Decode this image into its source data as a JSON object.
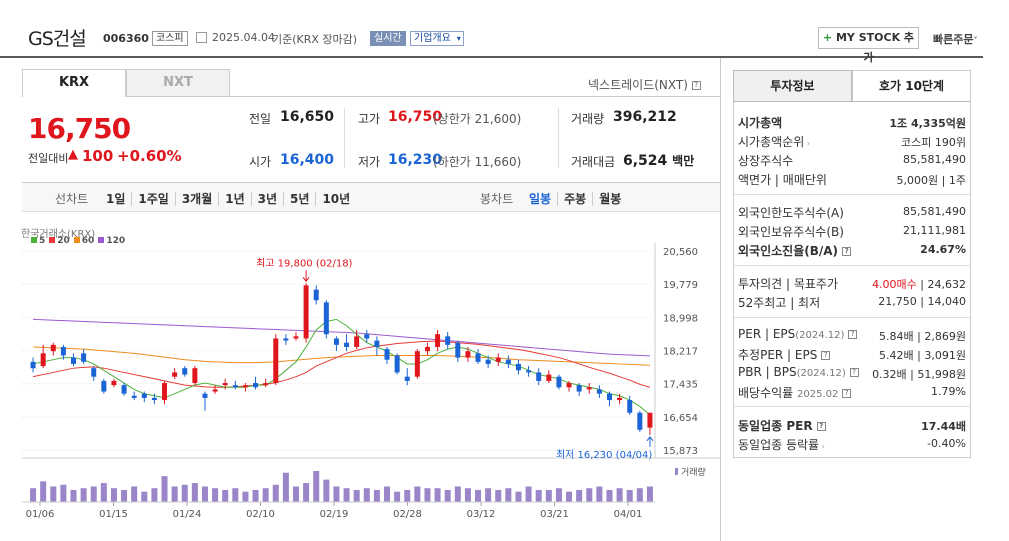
{
  "header": {
    "company": "GS건설",
    "code": "006360",
    "market_badge": "코스피",
    "date_text": "2025.04.04",
    "basis_text": "기준(KRX 장마감)",
    "realtime_badge": "실시간",
    "overview_button": "기업개요",
    "mystock_button": "MY STOCK 추가",
    "quick_order": "빠른주문"
  },
  "tabs": {
    "krx": "KRX",
    "nxt": "NXT",
    "nxt_link": "넥스트레이드(NXT)"
  },
  "price": {
    "current": "16,750",
    "change_label": "전일대비",
    "change_value": "100",
    "change_pct": "+0.60%"
  },
  "quote": {
    "prev_label": "전일",
    "prev_value": "16,650",
    "high_label": "고가",
    "high_value": "16,750",
    "high_limit": "(상한가 21,600)",
    "volume_label": "거래량",
    "volume_value": "396,212",
    "open_label": "시가",
    "open_value": "16,400",
    "low_label": "저가",
    "low_value": "16,230",
    "low_limit": "(하한가 11,660)",
    "amount_label": "거래대금",
    "amount_value": "6,524",
    "amount_unit": "백만"
  },
  "chart_toolbar": {
    "line_chart": "선차트",
    "periods": [
      "1일",
      "1주일",
      "3개월",
      "1년",
      "3년",
      "5년",
      "10년"
    ],
    "candle_chart": "봉차트",
    "candle_periods": [
      "일봉",
      "주봉",
      "월봉"
    ]
  },
  "chart_data": {
    "type": "candlestick",
    "source": "한국거래소(KRX)",
    "ma_legend": [
      {
        "name": "5",
        "color": "#4caf3a"
      },
      {
        "name": "20",
        "color": "#e53935"
      },
      {
        "name": "60",
        "color": "#f08c1e"
      },
      {
        "name": "120",
        "color": "#9b59d0"
      }
    ],
    "y_ticks": [
      "20,560",
      "19,779",
      "18,998",
      "18,217",
      "17,435",
      "16,654",
      "15,873"
    ],
    "ylim": [
      15873,
      20560
    ],
    "x_ticks": [
      "01/06",
      "01/15",
      "01/24",
      "02/10",
      "02/19",
      "02/28",
      "03/12",
      "03/21",
      "04/01"
    ],
    "annotations": {
      "high": "최고 19,800 (02/18)",
      "low": "최저 16,230 (04/04)"
    },
    "volume_label": "거래량",
    "candles": [
      {
        "o": 17950,
        "c": 17800,
        "h": 18050,
        "l": 17700
      },
      {
        "o": 17850,
        "c": 18150,
        "h": 18350,
        "l": 17800
      },
      {
        "o": 18200,
        "c": 18350,
        "h": 18400,
        "l": 18100
      },
      {
        "o": 18300,
        "c": 18100,
        "h": 18350,
        "l": 18000
      },
      {
        "o": 18050,
        "c": 17900,
        "h": 18150,
        "l": 17850
      },
      {
        "o": 18150,
        "c": 17950,
        "h": 18250,
        "l": 17900
      },
      {
        "o": 17800,
        "c": 17600,
        "h": 17850,
        "l": 17500
      },
      {
        "o": 17500,
        "c": 17250,
        "h": 17550,
        "l": 17200
      },
      {
        "o": 17400,
        "c": 17500,
        "h": 17550,
        "l": 17350
      },
      {
        "o": 17400,
        "c": 17200,
        "h": 17450,
        "l": 17150
      },
      {
        "o": 17150,
        "c": 17100,
        "h": 17250,
        "l": 17050
      },
      {
        "o": 17200,
        "c": 17100,
        "h": 17250,
        "l": 17000
      },
      {
        "o": 17100,
        "c": 17050,
        "h": 17200,
        "l": 16950
      },
      {
        "o": 17050,
        "c": 17450,
        "h": 17500,
        "l": 16950
      },
      {
        "o": 17600,
        "c": 17700,
        "h": 17800,
        "l": 17550
      },
      {
        "o": 17800,
        "c": 17650,
        "h": 17850,
        "l": 17600
      },
      {
        "o": 17450,
        "c": 17800,
        "h": 17850,
        "l": 17400
      },
      {
        "o": 17200,
        "c": 17100,
        "h": 17250,
        "l": 16800
      },
      {
        "o": 17250,
        "c": 17300,
        "h": 17400,
        "l": 17200
      },
      {
        "o": 17400,
        "c": 17450,
        "h": 17550,
        "l": 17300
      },
      {
        "o": 17400,
        "c": 17350,
        "h": 17500,
        "l": 17300
      },
      {
        "o": 17350,
        "c": 17400,
        "h": 17450,
        "l": 17250
      },
      {
        "o": 17450,
        "c": 17350,
        "h": 17600,
        "l": 17300
      },
      {
        "o": 17400,
        "c": 17450,
        "h": 17550,
        "l": 17350
      },
      {
        "o": 17450,
        "c": 18500,
        "h": 18600,
        "l": 17400
      },
      {
        "o": 18500,
        "c": 18450,
        "h": 18600,
        "l": 18350
      },
      {
        "o": 18500,
        "c": 18550,
        "h": 18650,
        "l": 18450
      },
      {
        "o": 18500,
        "c": 19750,
        "h": 19800,
        "l": 18400
      },
      {
        "o": 19650,
        "c": 19400,
        "h": 19750,
        "l": 19300
      },
      {
        "o": 19350,
        "c": 18600,
        "h": 19400,
        "l": 18500
      },
      {
        "o": 18500,
        "c": 18350,
        "h": 18550,
        "l": 18200
      },
      {
        "o": 18400,
        "c": 18300,
        "h": 18600,
        "l": 18200
      },
      {
        "o": 18300,
        "c": 18550,
        "h": 18700,
        "l": 18250
      },
      {
        "o": 18600,
        "c": 18500,
        "h": 18700,
        "l": 18400
      },
      {
        "o": 18450,
        "c": 18300,
        "h": 18550,
        "l": 18100
      },
      {
        "o": 18250,
        "c": 18000,
        "h": 18300,
        "l": 17900
      },
      {
        "o": 18100,
        "c": 17700,
        "h": 18150,
        "l": 17650
      },
      {
        "o": 17600,
        "c": 17500,
        "h": 17800,
        "l": 17400
      },
      {
        "o": 17600,
        "c": 18200,
        "h": 18250,
        "l": 17550
      },
      {
        "o": 18200,
        "c": 18300,
        "h": 18400,
        "l": 18100
      },
      {
        "o": 18300,
        "c": 18600,
        "h": 18700,
        "l": 18200
      },
      {
        "o": 18550,
        "c": 18350,
        "h": 18650,
        "l": 18250
      },
      {
        "o": 18400,
        "c": 18050,
        "h": 18450,
        "l": 17950
      },
      {
        "o": 18050,
        "c": 18200,
        "h": 18300,
        "l": 17950
      },
      {
        "o": 18150,
        "c": 17950,
        "h": 18250,
        "l": 17900
      },
      {
        "o": 18000,
        "c": 17900,
        "h": 18100,
        "l": 17800
      },
      {
        "o": 17950,
        "c": 18050,
        "h": 18150,
        "l": 17850
      },
      {
        "o": 18000,
        "c": 17900,
        "h": 18100,
        "l": 17800
      },
      {
        "o": 17900,
        "c": 17750,
        "h": 18000,
        "l": 17650
      },
      {
        "o": 17750,
        "c": 17700,
        "h": 17850,
        "l": 17600
      },
      {
        "o": 17700,
        "c": 17500,
        "h": 17800,
        "l": 17400
      },
      {
        "o": 17500,
        "c": 17650,
        "h": 17750,
        "l": 17450
      },
      {
        "o": 17600,
        "c": 17350,
        "h": 17650,
        "l": 17300
      },
      {
        "o": 17350,
        "c": 17450,
        "h": 17500,
        "l": 17250
      },
      {
        "o": 17400,
        "c": 17250,
        "h": 17450,
        "l": 17150
      },
      {
        "o": 17300,
        "c": 17350,
        "h": 17450,
        "l": 17200
      },
      {
        "o": 17300,
        "c": 17200,
        "h": 17400,
        "l": 17100
      },
      {
        "o": 17200,
        "c": 17050,
        "h": 17250,
        "l": 16900
      },
      {
        "o": 17050,
        "c": 17100,
        "h": 17200,
        "l": 16950
      },
      {
        "o": 17050,
        "c": 16750,
        "h": 17150,
        "l": 16700
      },
      {
        "o": 16750,
        "c": 16350,
        "h": 16800,
        "l": 16300
      },
      {
        "o": 16400,
        "c": 16750,
        "h": 16750,
        "l": 16230
      }
    ],
    "ma5": [
      17900,
      17950,
      18000,
      18050,
      18050,
      18000,
      17900,
      17750,
      17600,
      17450,
      17300,
      17200,
      17150,
      17100,
      17200,
      17300,
      17400,
      17450,
      17400,
      17350,
      17350,
      17350,
      17400,
      17400,
      17550,
      17750,
      17950,
      18300,
      18700,
      18900,
      18950,
      18800,
      18600,
      18400,
      18300,
      18200,
      18050,
      17900,
      17900,
      18000,
      18150,
      18250,
      18300,
      18250,
      18150,
      18050,
      17950,
      17900,
      17850,
      17750,
      17650,
      17600,
      17550,
      17450,
      17400,
      17350,
      17300,
      17200,
      17150,
      17050,
      16900,
      16700
    ],
    "ma20": [
      17600,
      17650,
      17700,
      17750,
      17800,
      17820,
      17830,
      17800,
      17750,
      17700,
      17650,
      17600,
      17550,
      17500,
      17450,
      17400,
      17380,
      17360,
      17350,
      17350,
      17360,
      17380,
      17400,
      17420,
      17460,
      17520,
      17600,
      17700,
      17850,
      17950,
      18050,
      18150,
      18220,
      18280,
      18320,
      18350,
      18380,
      18400,
      18420,
      18430,
      18440,
      18420,
      18400,
      18380,
      18360,
      18330,
      18300,
      18270,
      18240,
      18200,
      18150,
      18100,
      18050,
      17980,
      17900,
      17820,
      17750,
      17680,
      17600,
      17520,
      17420,
      17350
    ],
    "ma60": [
      18300,
      18290,
      18280,
      18270,
      18260,
      18250,
      18230,
      18210,
      18190,
      18170,
      18150,
      18120,
      18090,
      18060,
      18030,
      18000,
      17980,
      17960,
      17950,
      17940,
      17930,
      17930,
      17930,
      17940,
      17950,
      17970,
      17990,
      18010,
      18030,
      18050,
      18060,
      18070,
      18080,
      18090,
      18100,
      18100,
      18100,
      18100,
      18100,
      18100,
      18100,
      18090,
      18080,
      18070,
      18060,
      18050,
      18040,
      18020,
      18000,
      17990,
      17980,
      17970,
      17960,
      17950,
      17940,
      17930,
      17920,
      17910,
      17900,
      17890,
      17880,
      17870
    ],
    "ma120": [
      18950,
      18940,
      18930,
      18920,
      18910,
      18900,
      18890,
      18880,
      18870,
      18860,
      18850,
      18840,
      18830,
      18820,
      18810,
      18800,
      18790,
      18780,
      18770,
      18760,
      18750,
      18740,
      18730,
      18720,
      18710,
      18700,
      18690,
      18680,
      18670,
      18660,
      18650,
      18640,
      18630,
      18610,
      18590,
      18570,
      18550,
      18530,
      18510,
      18490,
      18470,
      18450,
      18430,
      18410,
      18390,
      18370,
      18350,
      18330,
      18310,
      18290,
      18270,
      18250,
      18230,
      18210,
      18190,
      18170,
      18150,
      18130,
      18120,
      18110,
      18100,
      18090
    ],
    "volume": [
      40,
      60,
      45,
      50,
      35,
      40,
      45,
      55,
      40,
      35,
      45,
      30,
      40,
      75,
      45,
      50,
      55,
      45,
      40,
      35,
      40,
      30,
      35,
      40,
      50,
      85,
      45,
      55,
      90,
      65,
      45,
      40,
      35,
      40,
      35,
      45,
      30,
      35,
      45,
      40,
      40,
      35,
      45,
      40,
      35,
      40,
      35,
      40,
      30,
      45,
      35,
      35,
      40,
      30,
      35,
      40,
      45,
      35,
      40,
      35,
      40,
      45
    ]
  },
  "right_panel": {
    "tab_invest": "투자정보",
    "tab_quote": "호가 10단계",
    "market_cap_label": "시가총액",
    "market_cap_value": "1조 4,335억원",
    "cap_rank_label": "시가총액순위",
    "cap_rank_value": "코스피 190위",
    "shares_label": "상장주식수",
    "shares_value": "85,581,490",
    "par_label": "액면가 | 매매단위",
    "par_value": "5,000원",
    "par_unit": "1주",
    "foreign_limit_label": "외국인한도주식수(A)",
    "foreign_limit_value": "85,581,490",
    "foreign_hold_label": "외국인보유주식수(B)",
    "foreign_hold_value": "21,111,981",
    "foreign_ratio_label": "외국인소진율(B/A)",
    "foreign_ratio_value": "24.67%",
    "opinion_label": "투자의견 | 목표주가",
    "opinion_value": "4.00매수",
    "target_value": "24,632",
    "week52_label": "52주최고 | 최저",
    "week52_high": "21,750",
    "week52_low": "14,040",
    "per_label": "PER | EPS",
    "per_sub": "(2024.12)",
    "per_value": "5.84배",
    "eps_value": "2,869원",
    "est_per_label": "추정PER | EPS",
    "est_per_value": "5.42배",
    "est_eps_value": "3,091원",
    "pbr_label": "PBR | BPS",
    "pbr_sub": "(2024.12)",
    "pbr_value": "0.32배",
    "bps_value": "51,998원",
    "div_label": "배당수익률",
    "div_sub": "2025.02",
    "div_value": "1.79%",
    "ind_per_label": "동일업종 PER",
    "ind_per_value": "17.44배",
    "ind_rate_label": "동일업종 등락률",
    "ind_rate_value": "-0.40%"
  }
}
